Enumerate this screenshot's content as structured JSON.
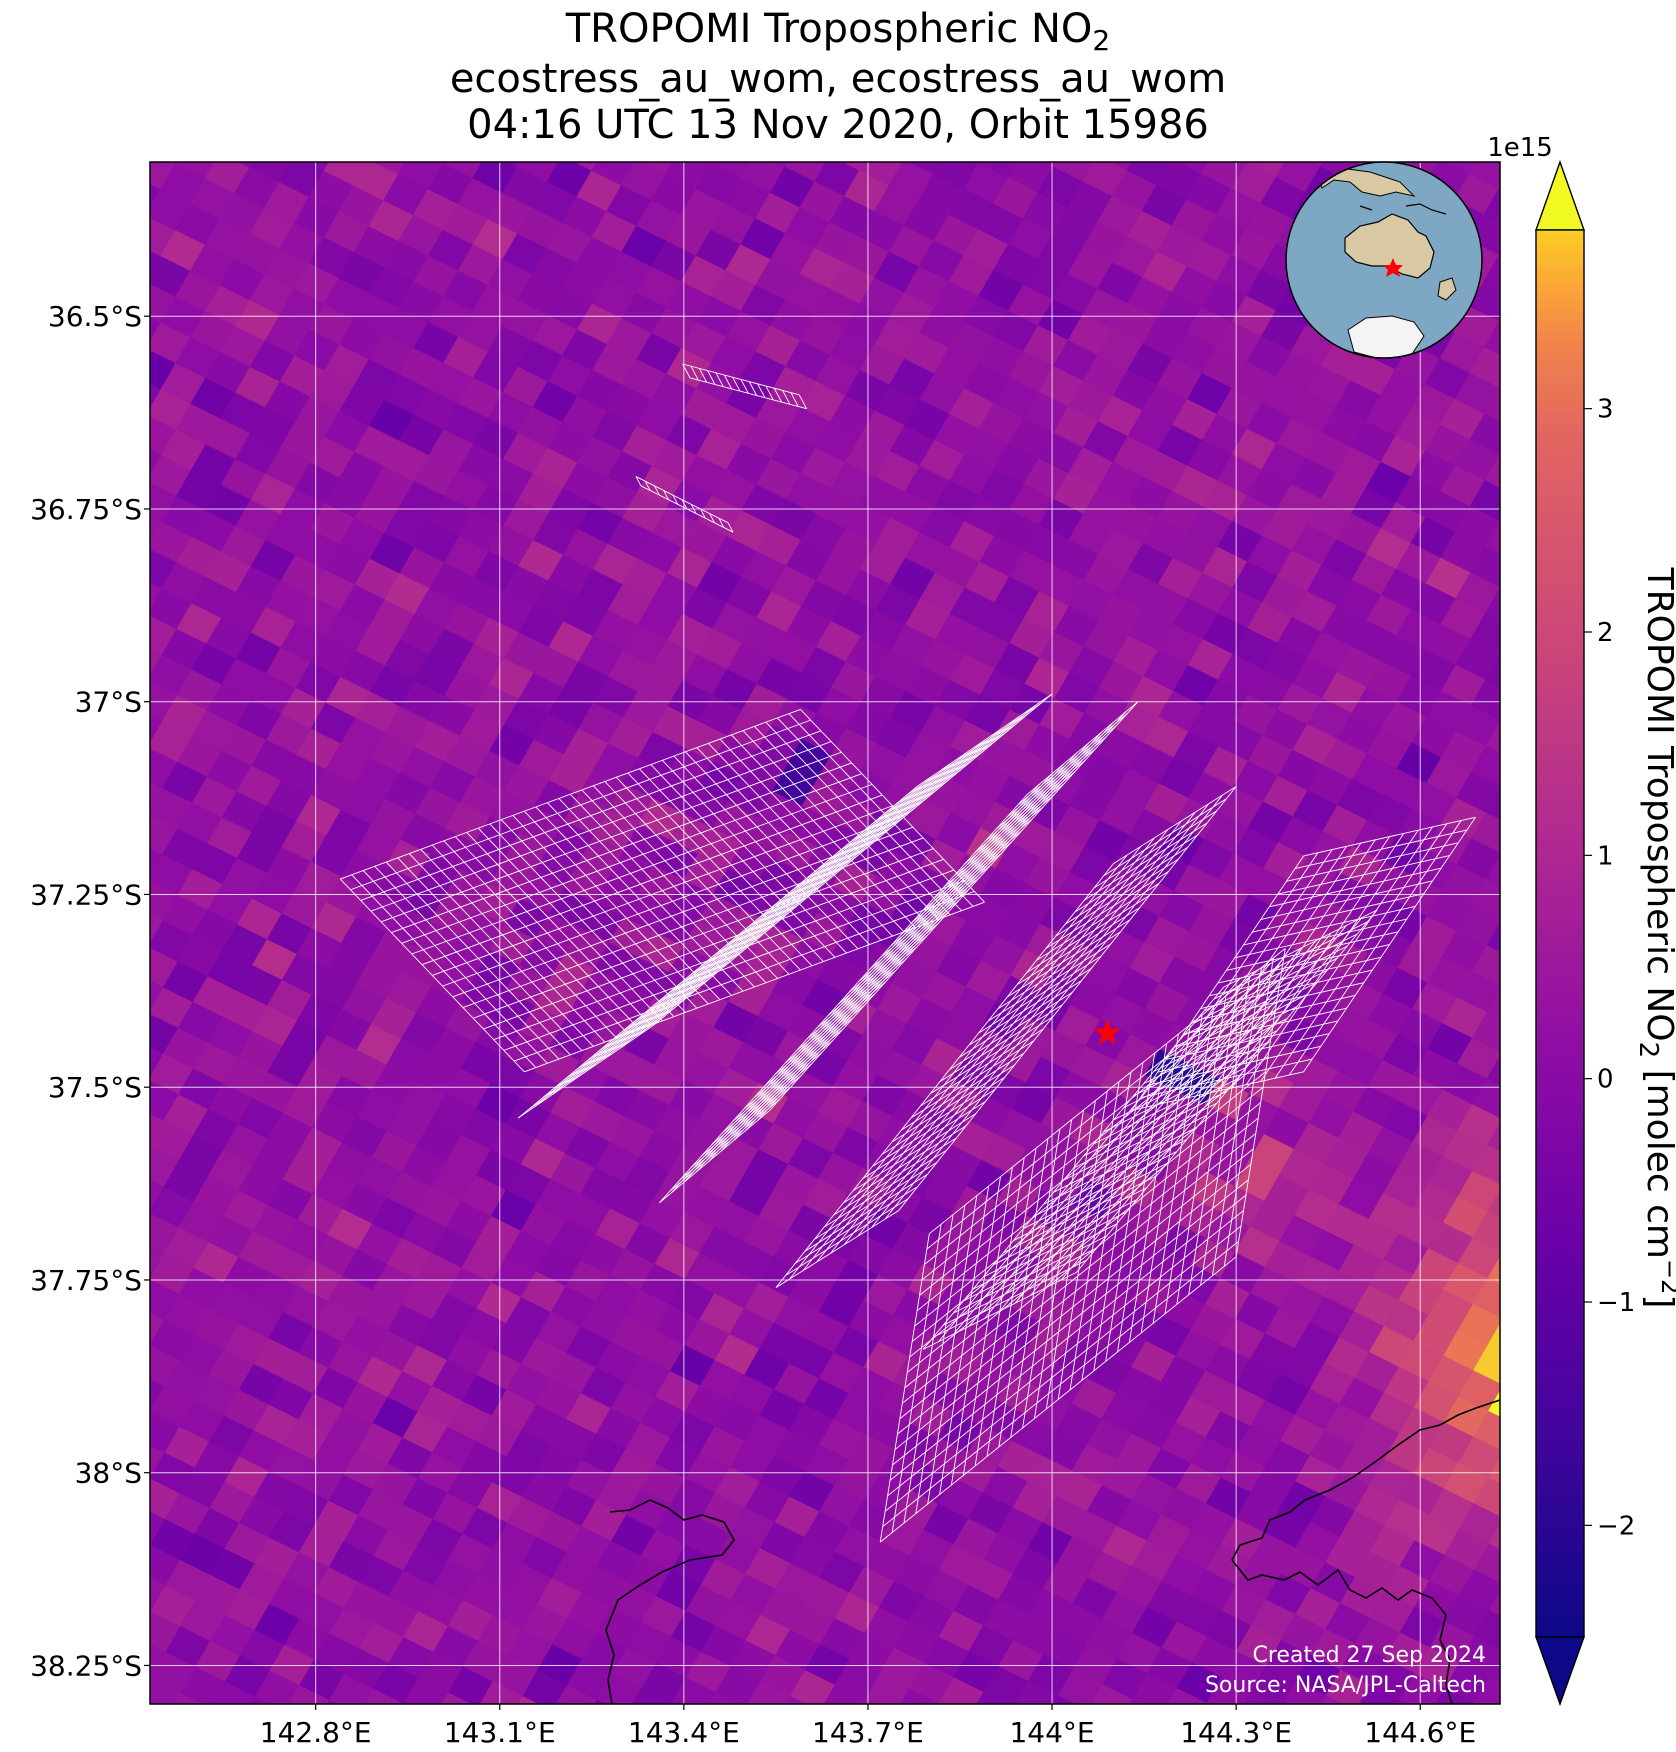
{
  "title": {
    "line1_prefix": "TROPOMI Tropospheric NO",
    "line1_sub": "2",
    "line2": "ecostress_au_wom, ecostress_au_wom",
    "line3": "04:16 UTC 13 Nov 2020, Orbit 15986"
  },
  "colorbar": {
    "label_prefix": "TROPOMI Tropospheric NO",
    "label_sub": "2",
    "label_units": " [molec cm",
    "label_exp": "−2",
    "label_close": "]",
    "multiplier": "1e15",
    "ticks": [
      "−2",
      "−1",
      "0",
      "1",
      "2",
      "3"
    ],
    "colormap": "plasma",
    "extend": "both"
  },
  "credits": {
    "created": "Created 27 Sep 2024",
    "source": "Source: NASA/JPL-Caltech"
  },
  "colors": {
    "grid": "#ffffff",
    "footprint_outline": "#ffffff",
    "site_marker": "#ff0000",
    "coastline": "#000000",
    "globe_ocean": "#7ea7c4",
    "globe_land": "#d8c9a4",
    "globe_ice": "#f4f4f4"
  },
  "chart_data": {
    "type": "heatmap",
    "variable": "TROPOMI Tropospheric NO2",
    "units": "molec cm^-2",
    "scale": 1000000000000000.0,
    "value_range": [
      -2.5,
      3.8
    ],
    "x_axis": {
      "ticks": [
        142.8,
        143.1,
        143.4,
        143.7,
        144.0,
        144.3,
        144.6
      ],
      "tick_labels": [
        "142.8°E",
        "143.1°E",
        "143.4°E",
        "143.7°E",
        "144°E",
        "144.3°E",
        "144.6°E"
      ],
      "range": [
        142.53,
        144.73
      ]
    },
    "y_axis": {
      "ticks": [
        -36.5,
        -36.75,
        -37.0,
        -37.25,
        -37.5,
        -37.75,
        -38.0,
        -38.25
      ],
      "tick_labels": [
        "36.5°S",
        "36.75°S",
        "37°S",
        "37.25°S",
        "37.5°S",
        "37.75°S",
        "38°S",
        "38.25°S"
      ],
      "range": [
        -38.3,
        -36.3
      ]
    },
    "grid": true,
    "site_marker": {
      "lon": 144.09,
      "lat": -37.43,
      "symbol": "star"
    },
    "inset_globe": {
      "position": "top-right",
      "center": "Australia"
    },
    "field_summary": {
      "typical_value": 0.2,
      "hotspot_regions": [
        {
          "area": "east edge near 144.6E, 37.8S",
          "value": 3.5
        },
        {
          "area": "band 144.2E-144.5E, 37.5S-37.7S",
          "value": 2.3
        }
      ],
      "low_regions": [
        {
          "area": "near 143.6E, 37.08S",
          "value": -1.6
        },
        {
          "area": "near 144.2E, 37.48S",
          "value": -2.0
        }
      ]
    }
  }
}
